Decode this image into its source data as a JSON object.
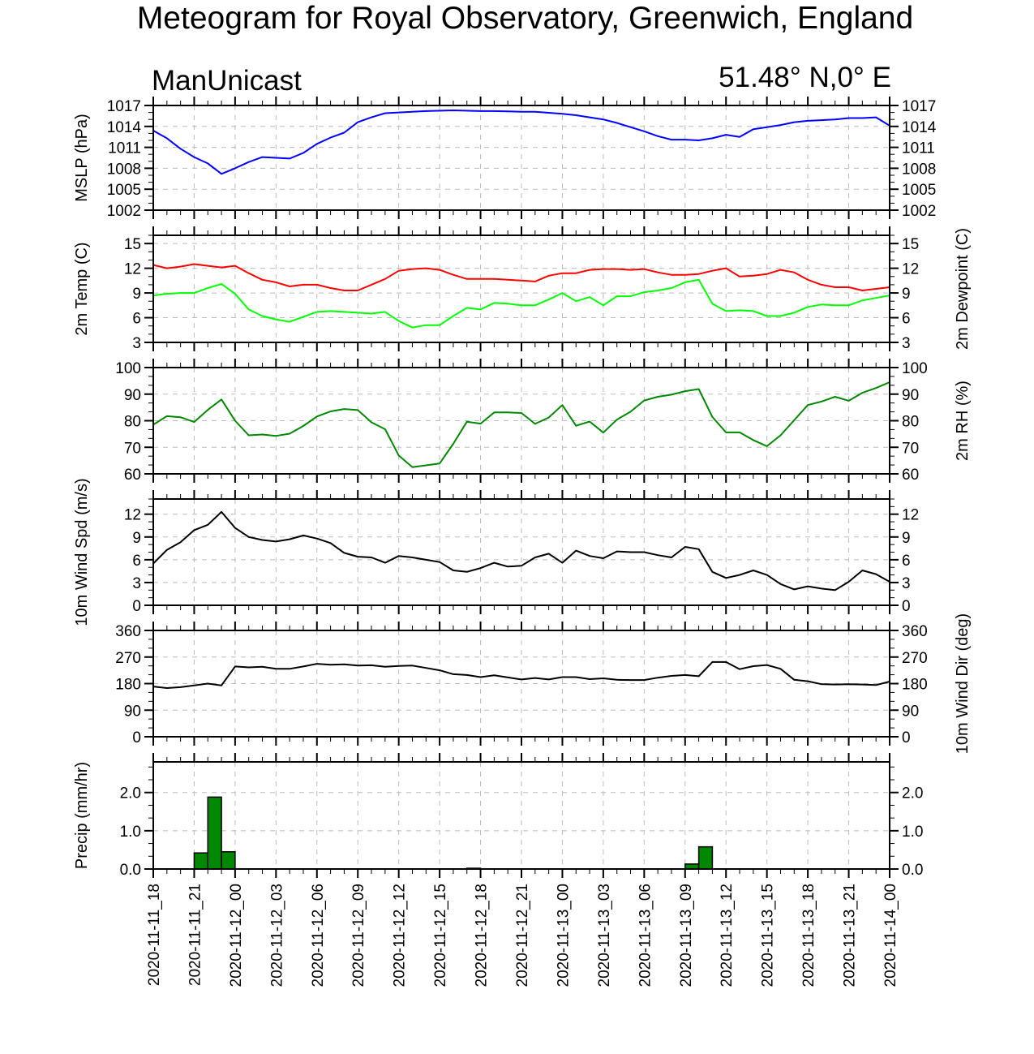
{
  "title": "Meteogram for Royal Observatory, Greenwich, England",
  "model_label": "ManUnicast",
  "location_label": "51.48° N,0° E",
  "time_labels": [
    "2020-11-11_18",
    "2020-11-11_21",
    "2020-11-12_00",
    "2020-11-12_03",
    "2020-11-12_06",
    "2020-11-12_09",
    "2020-11-12_12",
    "2020-11-12_15",
    "2020-11-12_18",
    "2020-11-12_21",
    "2020-11-13_00",
    "2020-11-13_03",
    "2020-11-13_06",
    "2020-11-13_09",
    "2020-11-13_12",
    "2020-11-13_15",
    "2020-11-13_18",
    "2020-11-13_21",
    "2020-11-14_00"
  ],
  "chart_data": [
    {
      "type": "line",
      "ylabel_left": "MSLP (hPa)",
      "ylabel_right": "",
      "ylim": [
        1002,
        1017
      ],
      "yticks": [
        1002,
        1005,
        1008,
        1011,
        1014,
        1017
      ],
      "tick_labels_left": [
        "1002",
        "1005",
        "1008",
        "1011",
        "1014",
        "1017"
      ],
      "tick_labels_right": [
        "1002",
        "1005",
        "1008",
        "1011",
        "1014",
        "1017"
      ],
      "right_axis_labels": true,
      "series": [
        {
          "color": "#0000ff",
          "x": [
            0,
            1,
            2,
            3,
            4,
            5,
            6,
            7,
            8,
            9,
            10,
            11,
            12,
            13,
            14,
            15,
            16,
            17,
            18,
            20,
            22,
            24,
            25,
            27,
            28,
            30,
            31,
            33,
            34,
            35,
            36,
            37,
            38,
            39,
            40,
            41,
            42,
            43,
            44,
            45,
            46,
            47,
            48,
            49,
            50,
            51,
            52,
            53,
            54
          ],
          "values": [
            1013.4,
            1012.3,
            1010.8,
            1009.6,
            1008.7,
            1007.2,
            1008.0,
            1008.9,
            1009.6,
            1009.5,
            1009.4,
            1010.2,
            1011.5,
            1012.4,
            1013.1,
            1014.6,
            1015.3,
            1015.9,
            1016.0,
            1016.2,
            1016.3,
            1016.2,
            1016.2,
            1016.1,
            1016.1,
            1015.8,
            1015.6,
            1015.0,
            1014.5,
            1013.9,
            1013.3,
            1012.6,
            1012.1,
            1012.1,
            1012.0,
            1012.3,
            1012.8,
            1012.5,
            1013.6,
            1013.9,
            1014.2,
            1014.6,
            1014.8,
            1014.9,
            1015.0,
            1015.2,
            1015.2,
            1015.3,
            1014.1
          ]
        }
      ]
    },
    {
      "type": "line",
      "ylabel_left": "2m Temp (C)",
      "ylabel_right": "2m Dewpoint (C)",
      "ylim": [
        3,
        16
      ],
      "yticks": [
        3,
        6,
        9,
        12,
        15
      ],
      "tick_labels_left": [
        "3",
        "6",
        "9",
        "12",
        "15"
      ],
      "tick_labels_right": [
        "3",
        "6",
        "9",
        "12",
        "15"
      ],
      "right_axis_labels": true,
      "series": [
        {
          "color": "#ff0000",
          "x": [
            0,
            1,
            2,
            3,
            4,
            5,
            6,
            7,
            8,
            9,
            10,
            11,
            12,
            13,
            14,
            15,
            16,
            17,
            18,
            19,
            20,
            21,
            22,
            23,
            24,
            25,
            26,
            27,
            28,
            29,
            30,
            31,
            32,
            33,
            34,
            35,
            36,
            37,
            38,
            39,
            40,
            41,
            42,
            43,
            44,
            45,
            46,
            47,
            48,
            49,
            50,
            51,
            52,
            53,
            54
          ],
          "values": [
            12.4,
            12.0,
            12.2,
            12.5,
            12.3,
            12.1,
            12.3,
            11.4,
            10.6,
            10.3,
            9.8,
            10.0,
            10.0,
            9.6,
            9.3,
            9.3,
            10.0,
            10.7,
            11.7,
            11.9,
            12.0,
            11.8,
            11.2,
            10.7,
            10.7,
            10.7,
            10.6,
            10.5,
            10.4,
            11.1,
            11.4,
            11.4,
            11.8,
            11.9,
            11.9,
            11.8,
            11.9,
            11.5,
            11.2,
            11.2,
            11.3,
            11.7,
            12.0,
            11.0,
            11.1,
            11.3,
            11.8,
            11.5,
            10.6,
            10.0,
            9.7,
            9.7,
            9.3,
            9.5,
            9.7
          ]
        },
        {
          "color": "#00ff00",
          "x": [
            0,
            1,
            2,
            3,
            4,
            5,
            6,
            7,
            8,
            9,
            10,
            11,
            12,
            13,
            14,
            15,
            16,
            17,
            18,
            19,
            20,
            21,
            22,
            23,
            24,
            25,
            26,
            27,
            28,
            29,
            30,
            31,
            32,
            33,
            34,
            35,
            36,
            37,
            38,
            39,
            40,
            41,
            42,
            43,
            44,
            45,
            46,
            47,
            48,
            49,
            50,
            51,
            52,
            53,
            54
          ],
          "values": [
            8.7,
            8.9,
            9.0,
            9.0,
            9.6,
            10.1,
            8.9,
            7.0,
            6.2,
            5.8,
            5.5,
            6.1,
            6.7,
            6.8,
            6.7,
            6.6,
            6.5,
            6.7,
            5.6,
            4.8,
            5.1,
            5.1,
            6.2,
            7.2,
            7.0,
            7.8,
            7.7,
            7.5,
            7.5,
            8.2,
            9.0,
            8.0,
            8.5,
            7.5,
            8.6,
            8.6,
            9.1,
            9.3,
            9.6,
            10.3,
            10.6,
            7.7,
            6.8,
            6.9,
            6.8,
            6.2,
            6.2,
            6.6,
            7.3,
            7.6,
            7.5,
            7.5,
            8.1,
            8.4,
            8.7
          ]
        }
      ]
    },
    {
      "type": "line",
      "ylabel_left": "",
      "ylabel_right": "2m RH (%)",
      "ylim": [
        60,
        100
      ],
      "yticks": [
        60,
        70,
        80,
        90,
        100
      ],
      "tick_labels_left": [
        "60",
        "70",
        "80",
        "90",
        "100"
      ],
      "tick_labels_right": [
        "60",
        "70",
        "80",
        "90",
        "100"
      ],
      "right_axis_labels": true,
      "series": [
        {
          "color": "#008800",
          "x": [
            0,
            1,
            2,
            3,
            4,
            5,
            6,
            7,
            8,
            9,
            10,
            11,
            12,
            13,
            14,
            15,
            16,
            17,
            18,
            19,
            21,
            22,
            23,
            24,
            25,
            26,
            27,
            28,
            29,
            30,
            31,
            32,
            33,
            34,
            35,
            36,
            37,
            38,
            39,
            40,
            41,
            42,
            43,
            44,
            45,
            46,
            47,
            48,
            49,
            50,
            51,
            52,
            53,
            54
          ],
          "values": [
            78.5,
            81.7,
            81.3,
            79.5,
            84.1,
            88.0,
            80.0,
            74.5,
            74.8,
            74.3,
            75.1,
            78.0,
            81.6,
            83.5,
            84.4,
            84.0,
            79.4,
            76.8,
            66.9,
            62.5,
            63.9,
            71.3,
            79.6,
            78.9,
            83.1,
            83.1,
            82.9,
            78.8,
            81.2,
            85.9,
            78.1,
            79.7,
            75.5,
            80.4,
            83.4,
            87.6,
            89.0,
            89.8,
            91.1,
            91.9,
            81.4,
            75.6,
            75.6,
            72.7,
            70.4,
            74.5,
            80.2,
            85.9,
            87.2,
            89.0,
            87.5,
            90.5,
            92.3,
            94.5
          ]
        }
      ]
    },
    {
      "type": "line",
      "ylabel_left": "10m Wind Spd (m/s)",
      "ylabel_right": "",
      "ylim": [
        0,
        14
      ],
      "yticks": [
        0,
        3,
        6,
        9,
        12
      ],
      "tick_labels_left": [
        "0",
        "3",
        "6",
        "9",
        "12"
      ],
      "tick_labels_right": [
        "0",
        "3",
        "6",
        "9",
        "12"
      ],
      "right_axis_labels": true,
      "series": [
        {
          "color": "#000000",
          "x": [
            0,
            1,
            2,
            3,
            4,
            5,
            6,
            7,
            8,
            9,
            10,
            11,
            12,
            13,
            14,
            15,
            16,
            17,
            18,
            19,
            20,
            21,
            22,
            23,
            24,
            25,
            26,
            27,
            28,
            29,
            30,
            31,
            32,
            33,
            34,
            35,
            36,
            37,
            38,
            39,
            40,
            41,
            42,
            43,
            44,
            45,
            46,
            47,
            48,
            49,
            50,
            51,
            52,
            53,
            54
          ],
          "values": [
            5.5,
            7.3,
            8.3,
            9.9,
            10.6,
            12.3,
            10.2,
            9.0,
            8.6,
            8.4,
            8.7,
            9.2,
            8.8,
            8.2,
            6.9,
            6.4,
            6.3,
            5.6,
            6.5,
            6.3,
            6.0,
            5.7,
            4.6,
            4.4,
            4.9,
            5.6,
            5.1,
            5.2,
            6.3,
            6.8,
            5.6,
            7.2,
            6.5,
            6.2,
            7.1,
            7.0,
            7.0,
            6.6,
            6.3,
            7.7,
            7.4,
            4.4,
            3.6,
            4.0,
            4.6,
            4.0,
            2.8,
            2.1,
            2.5,
            2.2,
            2.0,
            3.1,
            4.6,
            4.1,
            3.1
          ]
        }
      ]
    },
    {
      "type": "line",
      "ylabel_left": "",
      "ylabel_right": "10m Wind Dir (deg)",
      "ylim": [
        0,
        360
      ],
      "yticks": [
        0,
        90,
        180,
        270,
        360
      ],
      "tick_labels_left": [
        "0",
        "90",
        "180",
        "270",
        "360"
      ],
      "tick_labels_right": [
        "0",
        "90",
        "180",
        "270",
        "360"
      ],
      "right_axis_labels": true,
      "series": [
        {
          "color": "#000000",
          "x": [
            0,
            1,
            2,
            3,
            4,
            5,
            6,
            7,
            8,
            9,
            10,
            11,
            12,
            13,
            14,
            15,
            16,
            17,
            18,
            19,
            20,
            21,
            22,
            23,
            24,
            25,
            26,
            27,
            28,
            29,
            30,
            31,
            32,
            33,
            34,
            35,
            36,
            37,
            38,
            39,
            40,
            41,
            42,
            43,
            44,
            45,
            46,
            47,
            48,
            49,
            50,
            51,
            52,
            53,
            54
          ],
          "values": [
            170,
            165,
            168,
            174,
            180,
            174,
            238,
            235,
            237,
            230,
            230,
            238,
            247,
            244,
            245,
            241,
            242,
            237,
            240,
            241,
            233,
            225,
            212,
            209,
            202,
            208,
            201,
            194,
            199,
            194,
            202,
            202,
            195,
            198,
            193,
            192,
            192,
            200,
            206,
            209,
            205,
            253,
            253,
            229,
            239,
            243,
            230,
            193,
            188,
            178,
            177,
            178,
            177,
            175,
            187
          ]
        }
      ]
    },
    {
      "type": "bar",
      "ylabel_left": "Precip (mm/hr)",
      "ylabel_right": "",
      "ylim": [
        0,
        2.8
      ],
      "yticks": [
        0,
        1,
        2
      ],
      "tick_labels_left": [
        "0.0",
        "1.0",
        "2.0"
      ],
      "tick_labels_right": [
        "0.0",
        "1.0",
        "2.0"
      ],
      "right_axis_labels": true,
      "series": [
        {
          "color": "#008800",
          "x": [
            3,
            4,
            5,
            23,
            39,
            40
          ],
          "values": [
            0.42,
            1.88,
            0.45,
            0.02,
            0.13,
            0.58
          ]
        }
      ]
    }
  ]
}
